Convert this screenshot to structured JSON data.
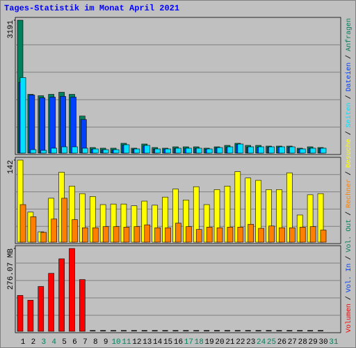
{
  "legend_separator": "/",
  "chart_data": [
    {
      "type": "bar",
      "title": "Tages-Statistik im Monat April 2021",
      "ylim": [
        0,
        3191
      ],
      "yticks": [
        3191
      ],
      "series": [
        {
          "name": "Anfragen",
          "color": "#00805c",
          "values": [
            3191,
            1411,
            1378,
            1411,
            1461,
            1411,
            890,
            134,
            118,
            118,
            235,
            118,
            218,
            134,
            118,
            151,
            151,
            151,
            118,
            151,
            185,
            235,
            185,
            185,
            168,
            168,
            168,
            118,
            151,
            134,
            null
          ]
        },
        {
          "name": "Dateien",
          "color": "#0040ff",
          "values": [
            1700,
            1394,
            1327,
            1344,
            1361,
            1344,
            806,
            95,
            78,
            78,
            190,
            95,
            175,
            95,
            95,
            110,
            110,
            110,
            95,
            125,
            140,
            205,
            140,
            140,
            140,
            140,
            140,
            95,
            110,
            110,
            null
          ]
        },
        {
          "name": "Seiten",
          "color": "#00e0ff",
          "values": [
            1814,
            84,
            67,
            118,
            151,
            151,
            118,
            101,
            84,
            84,
            202,
            101,
            185,
            101,
            101,
            118,
            118,
            118,
            101,
            134,
            151,
            218,
            151,
            151,
            151,
            151,
            151,
            101,
            118,
            118,
            null
          ]
        }
      ]
    },
    {
      "type": "bar",
      "ylim": [
        0,
        142
      ],
      "yticks": [
        142
      ],
      "series": [
        {
          "name": "Besuche",
          "color": "#ffff00",
          "values": [
            142,
            52,
            18,
            76,
            121,
            97,
            84,
            79,
            65,
            66,
            66,
            63,
            71,
            64,
            78,
            92,
            73,
            96,
            65,
            91,
            97,
            122,
            111,
            107,
            91,
            91,
            120,
            47,
            82,
            84,
            null
          ]
        },
        {
          "name": "Rechner",
          "color": "#ff8000",
          "values": [
            65,
            44,
            17,
            40,
            76,
            39,
            25,
            25,
            27,
            27,
            26,
            27,
            30,
            25,
            25,
            33,
            27,
            22,
            26,
            25,
            26,
            26,
            31,
            24,
            28,
            25,
            25,
            26,
            27,
            21,
            null
          ]
        }
      ]
    },
    {
      "type": "bar",
      "ylim": [
        0,
        276.07
      ],
      "yticks": [
        {
          "value": 276.07,
          "label": "276.07 MB"
        }
      ],
      "categories": [
        "1",
        "2",
        "3",
        "4",
        "5",
        "6",
        "7",
        "8",
        "9",
        "10",
        "11",
        "12",
        "13",
        "14",
        "15",
        "16",
        "17",
        "18",
        "19",
        "20",
        "21",
        "22",
        "23",
        "24",
        "25",
        "26",
        "27",
        "28",
        "29",
        "30",
        "31"
      ],
      "label_colors": [
        "#000000",
        "#000000",
        "#00805c",
        "#00805c",
        "#000000",
        "#000000",
        "#000000",
        "#000000",
        "#000000",
        "#00805c",
        "#00805c",
        "#000000",
        "#000000",
        "#000000",
        "#000000",
        "#000000",
        "#00805c",
        "#00805c",
        "#000000",
        "#000000",
        "#000000",
        "#000000",
        "#000000",
        "#00805c",
        "#00805c",
        "#000000",
        "#000000",
        "#000000",
        "#000000",
        "#000000",
        "#00805c"
      ],
      "series": [
        {
          "name": "Volumen",
          "color": "#ff0000",
          "values": [
            119.6,
            103.5,
            149.5,
            193.2,
            241.6,
            276.07,
            172.5,
            0,
            0,
            0,
            0,
            0,
            0,
            0,
            0,
            0,
            0,
            0,
            0,
            0,
            0,
            0,
            0,
            0,
            0,
            0,
            0,
            0,
            0,
            0,
            null
          ]
        }
      ],
      "extra_legend": [
        {
          "name": "Vol. In",
          "color": "#0040ff"
        },
        {
          "name": "Vol. Out",
          "color": "#00805c"
        }
      ]
    }
  ]
}
